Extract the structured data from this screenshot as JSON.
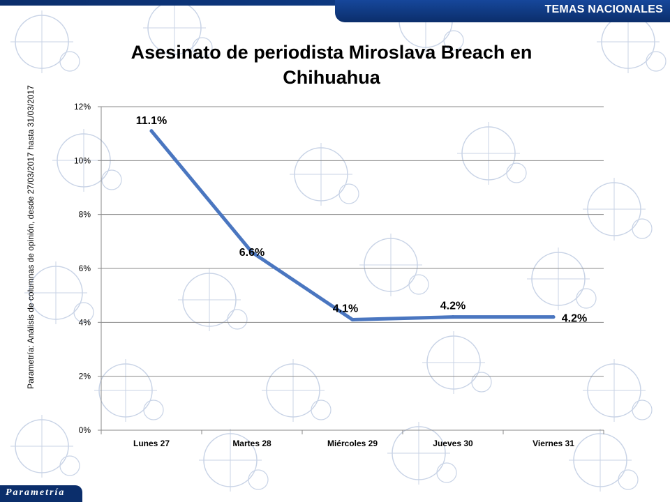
{
  "header": {
    "section_tag": "TEMAS NACIONALES"
  },
  "brand": {
    "logo_text": "Parametría"
  },
  "colors": {
    "accent": "#0b2e6b",
    "series": "#4a76c0",
    "watermark": "#c8d3e6"
  },
  "source_note": "Parametría: Análisis de columnas de opinión, desde 27/03/2017 hasta 31/03/2017",
  "chart_data": {
    "type": "line",
    "title": "Asesinato de periodista Miroslava Breach en Chihuahua",
    "categories": [
      "Lunes 27",
      "Martes 28",
      "Miércoles 29",
      "Jueves 30",
      "Viernes 31"
    ],
    "series": [
      {
        "values": [
          11.1,
          6.6,
          4.1,
          4.2,
          4.2
        ],
        "labels": [
          "11.1%",
          "6.6%",
          "4.1%",
          "4.2%",
          "4.2%"
        ]
      }
    ],
    "ylim": [
      0,
      12
    ],
    "yticks": [
      "0%",
      "2%",
      "4%",
      "6%",
      "8%",
      "10%",
      "12%"
    ],
    "ytick_values": [
      0,
      2,
      4,
      6,
      8,
      10,
      12
    ],
    "grid": true,
    "legend": "none",
    "xlabel": "",
    "ylabel": ""
  }
}
